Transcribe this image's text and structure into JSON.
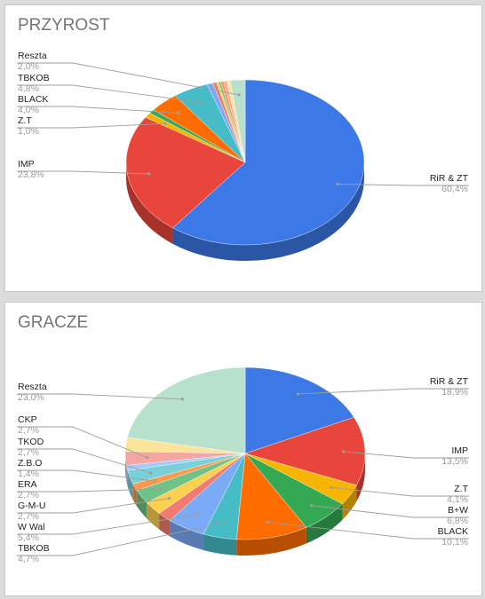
{
  "chart_data": [
    {
      "type": "pie",
      "title": "PRZYROST",
      "slices": [
        {
          "label": "RiR & ZT",
          "value_label": "60,4%",
          "value": 60.4,
          "color": "#3c78e6"
        },
        {
          "label": "IMP",
          "value_label": "23,8%",
          "value": 23.8,
          "color": "#e8453c"
        },
        {
          "label": "Z.T",
          "value_label": "1,0%",
          "value": 1.0,
          "color": "#f7b500"
        },
        {
          "label": "",
          "value_label": "",
          "value": 0.8,
          "color": "#34a853"
        },
        {
          "label": "BLACK",
          "value_label": "4,0%",
          "value": 4.0,
          "color": "#ff6d01"
        },
        {
          "label": "TBKOB",
          "value_label": "4,8%",
          "value": 4.8,
          "color": "#46bdc6"
        },
        {
          "label": "",
          "value_label": "",
          "value": 0.8,
          "color": "#7baaf7"
        },
        {
          "label": "",
          "value_label": "",
          "value": 0.5,
          "color": "#f07b72"
        },
        {
          "label": "",
          "value_label": "",
          "value": 0.3,
          "color": "#fcd04f"
        },
        {
          "label": "",
          "value_label": "",
          "value": 0.3,
          "color": "#71c287"
        },
        {
          "label": "",
          "value_label": "",
          "value": 0.4,
          "color": "#ff994d"
        },
        {
          "label": "",
          "value_label": "",
          "value": 0.4,
          "color": "#f4a7a0"
        },
        {
          "label": "",
          "value_label": "",
          "value": 0.5,
          "color": "#fde49b"
        },
        {
          "label": "Reszta",
          "value_label": "2,0%",
          "value": 2.0,
          "color": "#b7e1cd"
        }
      ]
    },
    {
      "type": "pie",
      "title": "GRACZE",
      "slices": [
        {
          "label": "RiR & ZT",
          "value_label": "18,9%",
          "value": 18.9,
          "color": "#3c78e6"
        },
        {
          "label": "IMP",
          "value_label": "13,5%",
          "value": 13.5,
          "color": "#e8453c"
        },
        {
          "label": "Z.T",
          "value_label": "4,1%",
          "value": 4.1,
          "color": "#f7b500"
        },
        {
          "label": "B+W",
          "value_label": "6,8%",
          "value": 6.8,
          "color": "#34a853"
        },
        {
          "label": "BLACK",
          "value_label": "10,1%",
          "value": 10.1,
          "color": "#ff6d01"
        },
        {
          "label": "TBKOB",
          "value_label": "4,7%",
          "value": 4.7,
          "color": "#46bdc6"
        },
        {
          "label": "W Wal",
          "value_label": "5,4%",
          "value": 5.4,
          "color": "#7baaf7"
        },
        {
          "label": "",
          "value_label": "",
          "value": 2.0,
          "color": "#f07b72"
        },
        {
          "label": "G-M-U",
          "value_label": "2,7%",
          "value": 2.7,
          "color": "#fcd04f"
        },
        {
          "label": "ERA",
          "value_label": "2,7%",
          "value": 2.7,
          "color": "#71c287"
        },
        {
          "label": "Z.B.O",
          "value_label": "1,4%",
          "value": 1.4,
          "color": "#ff994d"
        },
        {
          "label": "TKOD",
          "value_label": "2,7%",
          "value": 2.7,
          "color": "#78d0d8"
        },
        {
          "label": "",
          "value_label": "",
          "value": 1.0,
          "color": "#a6c8fa"
        },
        {
          "label": "CKP",
          "value_label": "2,7%",
          "value": 2.7,
          "color": "#f4a7a0"
        },
        {
          "label": "",
          "value_label": "",
          "value": 2.7,
          "color": "#fde49b"
        },
        {
          "label": "Reszta",
          "value_label": "23,0%",
          "value": 23.0,
          "color": "#b7e1cd"
        }
      ]
    }
  ]
}
